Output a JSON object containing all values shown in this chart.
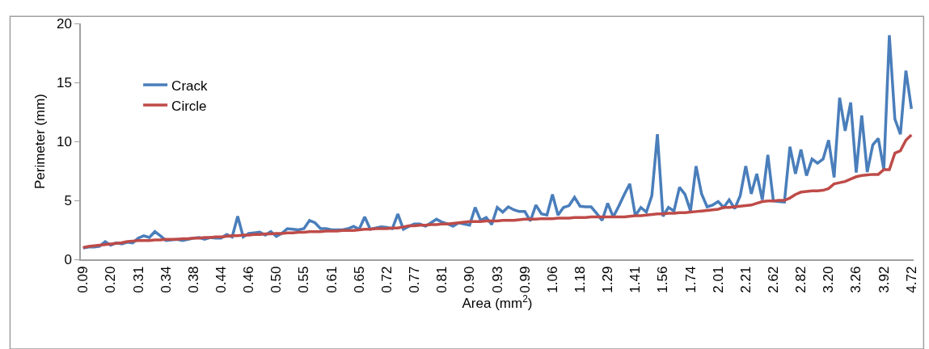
{
  "chart_data": {
    "type": "line",
    "xlabel": "Area (mm$^{2}$)",
    "ylabel": "Perimeter (mm)",
    "categories": [
      "0.09",
      null,
      null,
      null,
      null,
      "0.20",
      null,
      null,
      null,
      null,
      "0.31",
      null,
      null,
      null,
      null,
      "0.34",
      null,
      null,
      null,
      null,
      "0.38",
      null,
      null,
      null,
      null,
      "0.44",
      null,
      null,
      null,
      null,
      "0.46",
      null,
      null,
      null,
      null,
      "0.50",
      null,
      null,
      null,
      null,
      "0.55",
      null,
      null,
      null,
      null,
      "0.61",
      null,
      null,
      null,
      null,
      "0.65",
      null,
      null,
      null,
      null,
      "0.72",
      null,
      null,
      null,
      null,
      "0.77",
      null,
      null,
      null,
      null,
      "0.81",
      null,
      null,
      null,
      null,
      "0.90",
      null,
      null,
      null,
      null,
      "0.93",
      null,
      null,
      null,
      null,
      "0.99",
      null,
      null,
      null,
      null,
      "1.06",
      null,
      null,
      null,
      null,
      "1.18",
      null,
      null,
      null,
      null,
      "1.29",
      null,
      null,
      null,
      null,
      "1.41",
      null,
      null,
      null,
      null,
      "1.56",
      null,
      null,
      null,
      null,
      "1.74",
      null,
      null,
      null,
      null,
      "2.01",
      null,
      null,
      null,
      null,
      "2.21",
      null,
      null,
      null,
      null,
      "2.62",
      null,
      null,
      null,
      null,
      "2.82",
      null,
      null,
      null,
      null,
      "3.20",
      null,
      null,
      null,
      null,
      "3.26",
      null,
      null,
      null,
      null,
      "3.92",
      null,
      null,
      null,
      null,
      "4.72"
    ],
    "series": [
      {
        "name": "Crack",
        "color": "#4a7ebb",
        "values": [
          0.96,
          1.05,
          1.05,
          1.1,
          1.5,
          1.2,
          1.4,
          1.3,
          1.45,
          1.4,
          1.8,
          2.0,
          1.85,
          2.35,
          2.0,
          1.6,
          1.65,
          1.7,
          1.6,
          1.7,
          1.8,
          1.85,
          1.7,
          1.85,
          1.8,
          1.8,
          2.1,
          1.9,
          3.65,
          1.9,
          2.2,
          2.25,
          2.3,
          2.05,
          2.35,
          1.95,
          2.2,
          2.6,
          2.55,
          2.5,
          2.6,
          3.3,
          3.1,
          2.6,
          2.6,
          2.5,
          2.5,
          2.5,
          2.6,
          2.8,
          2.55,
          3.6,
          2.55,
          2.65,
          2.75,
          2.7,
          2.6,
          3.85,
          2.55,
          2.8,
          3.0,
          3.0,
          2.8,
          3.1,
          3.4,
          3.15,
          3.0,
          2.8,
          3.1,
          3.0,
          2.9,
          4.4,
          3.3,
          3.55,
          2.95,
          4.4,
          4.0,
          4.45,
          4.2,
          4.05,
          4.05,
          3.25,
          4.6,
          3.85,
          3.75,
          5.5,
          3.75,
          4.4,
          4.55,
          5.25,
          4.5,
          4.45,
          4.45,
          3.9,
          3.3,
          4.75,
          3.6,
          4.5,
          5.5,
          6.4,
          3.7,
          4.4,
          4.0,
          5.4,
          10.6,
          3.65,
          4.4,
          4.1,
          6.1,
          5.5,
          4.1,
          7.9,
          5.55,
          4.45,
          4.6,
          4.9,
          4.4,
          5.05,
          4.3,
          5.4,
          7.9,
          5.55,
          7.25,
          5.05,
          8.85,
          4.95,
          4.9,
          4.85,
          9.55,
          7.25,
          9.3,
          7.1,
          8.5,
          8.15,
          8.5,
          10.1,
          6.95,
          13.7,
          10.9,
          13.3,
          7.35,
          12.2,
          7.4,
          9.7,
          10.25,
          7.6,
          19.0,
          11.9,
          10.6,
          16.0,
          12.75
        ]
      },
      {
        "name": "Circle",
        "color": "#be4b48",
        "values": [
          1.0,
          1.1,
          1.15,
          1.2,
          1.25,
          1.3,
          1.35,
          1.4,
          1.5,
          1.55,
          1.6,
          1.6,
          1.6,
          1.65,
          1.65,
          1.7,
          1.7,
          1.7,
          1.75,
          1.75,
          1.8,
          1.8,
          1.85,
          1.85,
          1.9,
          1.9,
          1.95,
          2.0,
          2.0,
          2.05,
          2.05,
          2.1,
          2.1,
          2.15,
          2.15,
          2.2,
          2.2,
          2.25,
          2.25,
          2.3,
          2.3,
          2.35,
          2.35,
          2.35,
          2.4,
          2.4,
          2.4,
          2.45,
          2.45,
          2.45,
          2.5,
          2.55,
          2.55,
          2.6,
          2.6,
          2.6,
          2.65,
          2.65,
          2.75,
          2.85,
          2.85,
          2.9,
          2.9,
          2.95,
          2.95,
          3.0,
          3.0,
          3.05,
          3.1,
          3.15,
          3.2,
          3.2,
          3.2,
          3.25,
          3.25,
          3.25,
          3.3,
          3.3,
          3.3,
          3.35,
          3.4,
          3.4,
          3.4,
          3.45,
          3.45,
          3.45,
          3.5,
          3.5,
          3.5,
          3.55,
          3.55,
          3.55,
          3.6,
          3.6,
          3.6,
          3.6,
          3.6,
          3.6,
          3.6,
          3.65,
          3.7,
          3.7,
          3.75,
          3.8,
          3.85,
          3.85,
          3.9,
          3.9,
          3.95,
          3.95,
          4.0,
          4.05,
          4.1,
          4.15,
          4.2,
          4.25,
          4.4,
          4.4,
          4.45,
          4.5,
          4.55,
          4.6,
          4.75,
          4.9,
          4.95,
          4.95,
          5.0,
          5.0,
          5.2,
          5.5,
          5.7,
          5.75,
          5.8,
          5.8,
          5.85,
          6.0,
          6.4,
          6.5,
          6.6,
          6.8,
          7.0,
          7.1,
          7.15,
          7.2,
          7.2,
          7.6,
          7.6,
          9.0,
          9.2,
          10.1,
          10.55
        ]
      }
    ],
    "ylim": [
      0,
      20
    ],
    "yticks": [
      0,
      5,
      10,
      15,
      20
    ],
    "grid": false,
    "legend": "top left",
    "marker": "none",
    "line_style": "solid"
  }
}
